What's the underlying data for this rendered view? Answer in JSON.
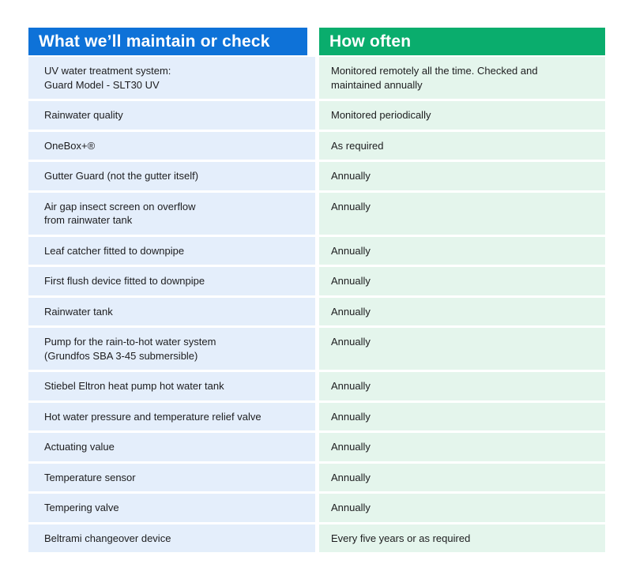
{
  "colors": {
    "header_blue": "#0e72d8",
    "header_green": "#0aad6d",
    "row_blue": "#e4eefb",
    "row_green": "#e4f5ec",
    "text": "#1d1d1f"
  },
  "table": {
    "headers": [
      {
        "label": "What we’ll maintain or check"
      },
      {
        "label": "How often"
      }
    ],
    "rows": [
      {
        "item": "UV water treatment system:\nGuard Model - SLT30 UV",
        "frequency": "Monitored remotely all the time. Checked and\nmaintained annually"
      },
      {
        "item": "Rainwater quality",
        "frequency": "Monitored periodically"
      },
      {
        "item": "OneBox+®",
        "frequency": "As required"
      },
      {
        "item": "Gutter Guard (not the gutter itself)",
        "frequency": "Annually"
      },
      {
        "item": "Air gap insect screen on overflow\nfrom rainwater tank",
        "frequency": "Annually"
      },
      {
        "item": "Leaf catcher fitted to downpipe",
        "frequency": "Annually"
      },
      {
        "item": "First flush device fitted to downpipe",
        "frequency": "Annually"
      },
      {
        "item": "Rainwater tank",
        "frequency": "Annually"
      },
      {
        "item": "Pump for the rain-to-hot water system\n(Grundfos SBA 3-45 submersible)",
        "frequency": "Annually"
      },
      {
        "item": "Stiebel Eltron heat pump hot water tank",
        "frequency": "Annually"
      },
      {
        "item": "Hot water pressure and temperature relief valve",
        "frequency": "Annually"
      },
      {
        "item": "Actuating value",
        "frequency": "Annually"
      },
      {
        "item": "Temperature sensor",
        "frequency": "Annually"
      },
      {
        "item": "Tempering valve",
        "frequency": "Annually"
      },
      {
        "item": "Beltrami changeover device",
        "frequency": "Every five years or as required"
      }
    ]
  }
}
